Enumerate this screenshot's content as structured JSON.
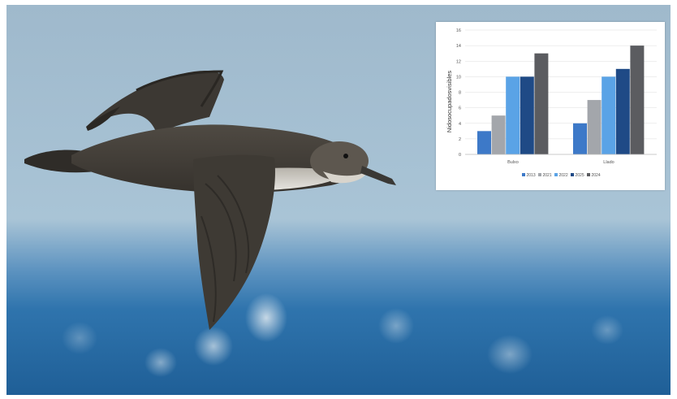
{
  "photo": {
    "subject": "shearwater-in-flight",
    "sky_color": "#a8c3d6",
    "sea_color": "#2a6fa8"
  },
  "chart_data": {
    "type": "bar",
    "categories": [
      "Bulxo",
      "Llado"
    ],
    "series": [
      {
        "name": "2013",
        "values": [
          3,
          4
        ],
        "color": "#3d79c8"
      },
      {
        "name": "2021",
        "values": [
          5,
          7
        ],
        "color": "#a3a6ab"
      },
      {
        "name": "2022",
        "values": [
          10,
          10
        ],
        "color": "#5aa3e6"
      },
      {
        "name": "2025",
        "values": [
          10,
          11
        ],
        "color": "#1f4a86"
      },
      {
        "name": "2024",
        "values": [
          13,
          14
        ],
        "color": "#5b5c60"
      }
    ],
    "ylabel": "Nidosocupadosvisibles",
    "xlabel": "",
    "ylim": [
      0,
      16
    ],
    "yticks": [
      0,
      2,
      4,
      6,
      8,
      10,
      12,
      14,
      16
    ],
    "grid": true,
    "legend_position": "bottom"
  }
}
